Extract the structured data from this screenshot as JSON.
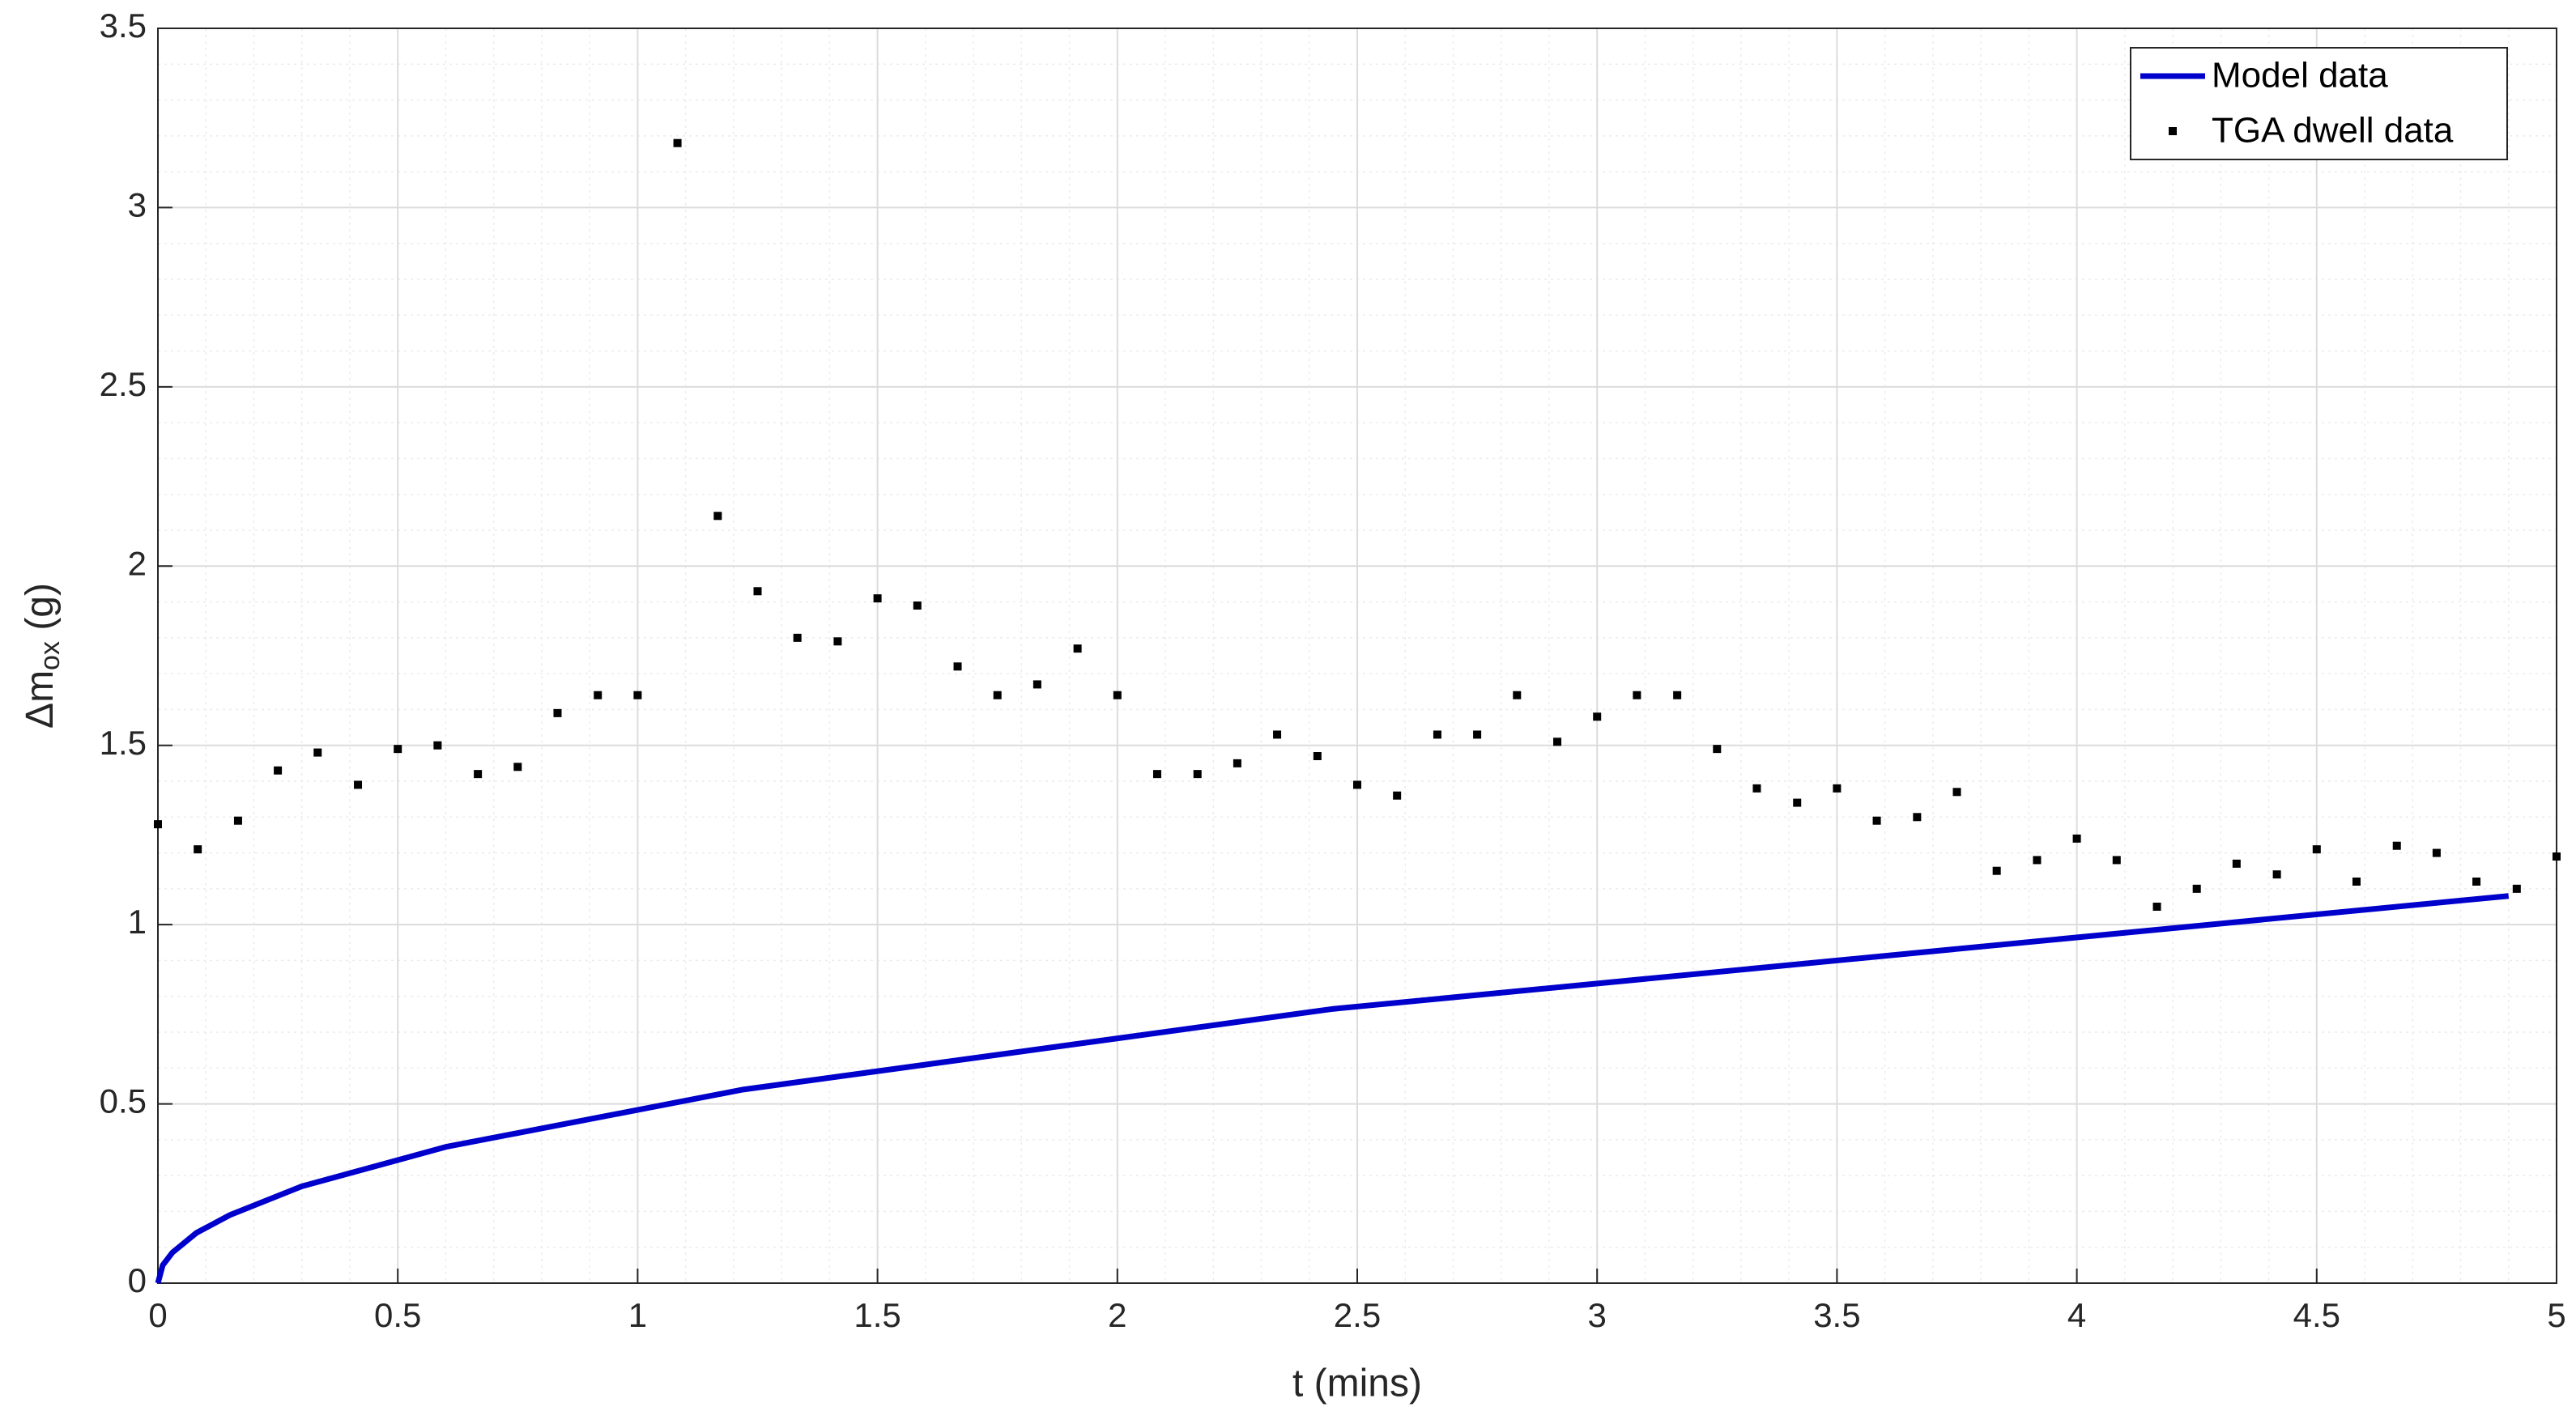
{
  "chart_data": {
    "type": "line",
    "xlabel": "t (mins)",
    "ylabel": [
      "Δm",
      "ox",
      " (g)"
    ],
    "xlim": [
      0,
      5
    ],
    "ylim": [
      0,
      3.5
    ],
    "xticks": [
      0,
      0.5,
      1,
      1.5,
      2,
      2.5,
      3,
      3.5,
      4,
      4.5,
      5
    ],
    "yticks": [
      0,
      0.5,
      1,
      1.5,
      2,
      2.5,
      3,
      3.5
    ],
    "grid": true,
    "minor_grid": true,
    "legend": "northeast",
    "series": [
      {
        "name": "Model data",
        "color": "#0000cc",
        "style": "line",
        "x": [
          0,
          0.01,
          0.03,
          0.08,
          0.15,
          0.3,
          0.6,
          1.22,
          2.45,
          4.9
        ],
        "values": [
          0,
          0.05,
          0.085,
          0.14,
          0.19,
          0.27,
          0.38,
          0.54,
          0.765,
          1.08
        ]
      },
      {
        "name": "TGA dwell data",
        "color": "#000000",
        "style": "markers",
        "x": [
          0,
          0.083,
          0.167,
          0.25,
          0.333,
          0.417,
          0.5,
          0.583,
          0.667,
          0.75,
          0.833,
          0.917,
          1,
          1.083,
          1.167,
          1.25,
          1.333,
          1.417,
          1.5,
          1.583,
          1.667,
          1.75,
          1.833,
          1.917,
          2,
          2.083,
          2.167,
          2.25,
          2.333,
          2.417,
          2.5,
          2.583,
          2.667,
          2.75,
          2.833,
          2.917,
          3,
          3.083,
          3.167,
          3.25,
          3.333,
          3.417,
          3.5,
          3.583,
          3.667,
          3.75,
          3.833,
          3.917,
          4,
          4.083,
          4.167,
          4.25,
          4.333,
          4.417,
          4.5,
          4.583,
          4.667,
          4.75,
          4.833,
          4.917,
          5
        ],
        "values": [
          1.28,
          1.21,
          1.29,
          1.43,
          1.48,
          1.39,
          1.49,
          1.5,
          1.42,
          1.44,
          1.59,
          1.64,
          1.64,
          3.18,
          2.14,
          1.93,
          1.8,
          1.79,
          1.91,
          1.89,
          1.72,
          1.64,
          1.67,
          1.77,
          1.64,
          1.42,
          1.42,
          1.45,
          1.53,
          1.47,
          1.39,
          1.36,
          1.53,
          1.53,
          1.64,
          1.51,
          1.58,
          1.64,
          1.64,
          1.49,
          1.38,
          1.34,
          1.38,
          1.29,
          1.3,
          1.37,
          1.15,
          1.18,
          1.24,
          1.18,
          1.05,
          1.1,
          1.17,
          1.14,
          1.21,
          1.12,
          1.22,
          1.2,
          1.12,
          1.1,
          1.19
        ]
      }
    ]
  }
}
